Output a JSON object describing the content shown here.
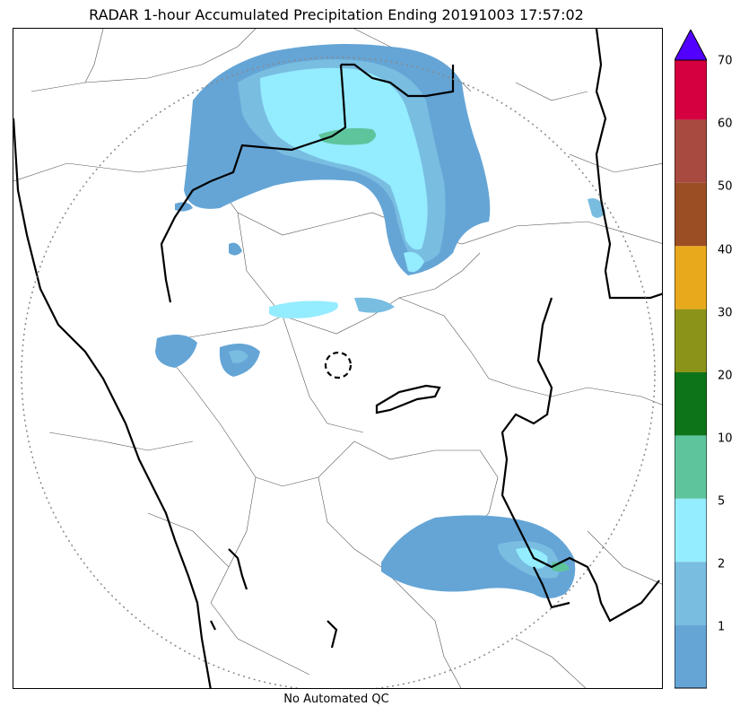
{
  "title": "RADAR 1-hour Accumulated Precipitation Ending 20191003 17:57:02",
  "footer": "No Automated QC",
  "colorbar": {
    "labels": [
      "70",
      "60",
      "50",
      "40",
      "30",
      "20",
      "10",
      "5",
      "2",
      "1"
    ],
    "colors": [
      "#65a5d6",
      "#79bde1",
      "#94ecff",
      "#5ec49c",
      "#0e7419",
      "#8b9418",
      "#e9a91c",
      "#9b4e24",
      "#a84a40",
      "#d5003f"
    ],
    "extend_color": "#5200ff"
  },
  "precip_colors": {
    "level_1": "#65a5d6",
    "level_2": "#79bde1",
    "level_3": "#94ecff",
    "level_4": "#5ec49c"
  }
}
